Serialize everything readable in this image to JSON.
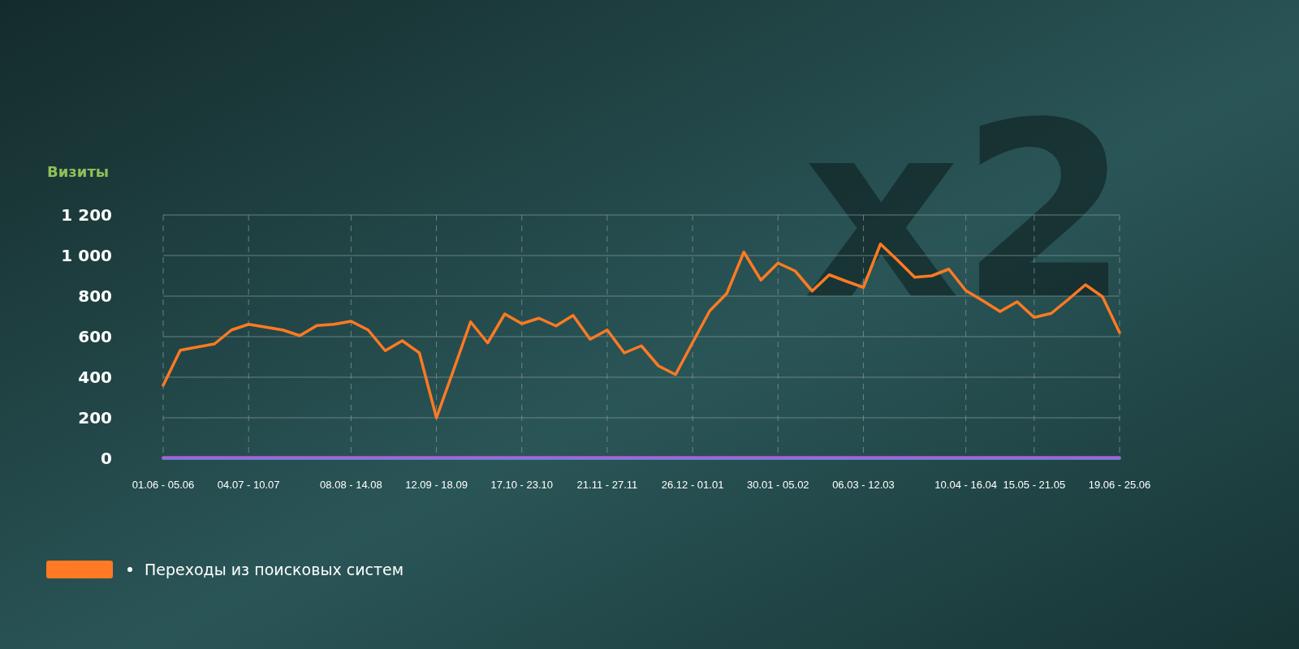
{
  "chart_data": {
    "type": "line",
    "ylabel": "Визиты",
    "annotations": [
      "x2"
    ],
    "categories": [
      "01.06 - 05.06",
      null,
      null,
      null,
      null,
      "04.07 - 10.07",
      null,
      null,
      null,
      null,
      null,
      "08.08 - 14.08",
      null,
      null,
      null,
      null,
      "12.09 - 18.09",
      null,
      null,
      null,
      null,
      "17.10 - 23.10",
      null,
      null,
      null,
      null,
      "21.11 - 27.11",
      null,
      null,
      null,
      null,
      "26.12 - 01.01",
      null,
      null,
      null,
      null,
      "30.01 - 05.02",
      null,
      null,
      null,
      null,
      "06.03 - 12.03",
      null,
      null,
      null,
      null,
      null,
      "10.04 - 16.04",
      null,
      null,
      null,
      "15.05 - 21.05",
      null,
      null,
      null,
      null,
      "19.06 - 25.06"
    ],
    "series": [
      {
        "name": "Переходы из поисковых систем",
        "color": "#ff7a22",
        "values": [
          360,
          533,
          549,
          564,
          633,
          661,
          647,
          633,
          605,
          655,
          661,
          676,
          633,
          531,
          580,
          520,
          200,
          435,
          673,
          569,
          712,
          664,
          691,
          653,
          705,
          587,
          633,
          520,
          555,
          456,
          413,
          571,
          727,
          813,
          1017,
          879,
          963,
          924,
          825,
          905,
          873,
          843,
          1057,
          977,
          893,
          900,
          933,
          827,
          777,
          724,
          772,
          695,
          715,
          784,
          856,
          797,
          620
        ]
      },
      {
        "color": "#b05fd6",
        "values": [
          4,
          4,
          4,
          4,
          4,
          4,
          4,
          4,
          4,
          4,
          4,
          4,
          4,
          4,
          4,
          4,
          4,
          4,
          4,
          4,
          4,
          4,
          4,
          4,
          4,
          4,
          4,
          4,
          4,
          4,
          4,
          4,
          4,
          4,
          4,
          4,
          4,
          4,
          4,
          4,
          4,
          4,
          4,
          4,
          4,
          4,
          4,
          4,
          4,
          4,
          4,
          4,
          4,
          4,
          4,
          4,
          4
        ]
      },
      {
        "color": "#3aa3ea",
        "values": [
          0,
          0,
          0,
          0,
          0,
          0,
          0,
          0,
          0,
          0,
          0,
          0,
          0,
          0,
          0,
          0,
          0,
          0,
          0,
          0,
          0,
          0,
          0,
          0,
          0,
          0,
          0,
          0,
          0,
          0,
          0,
          0,
          0,
          0,
          0,
          0,
          0,
          0,
          0,
          0,
          0,
          0,
          0,
          0,
          0,
          0,
          0,
          0,
          0,
          0,
          0,
          0,
          0,
          0,
          0,
          0,
          0
        ]
      }
    ],
    "ylim": [
      0,
      1200
    ],
    "yticks": [
      0,
      200,
      400,
      600,
      800,
      {
        "value": 1000,
        "label": "1 000"
      },
      {
        "value": 1200,
        "label": "1 200"
      }
    ],
    "grid": true,
    "legend": "bottom left",
    "marker": "none",
    "line_style": "solid"
  }
}
